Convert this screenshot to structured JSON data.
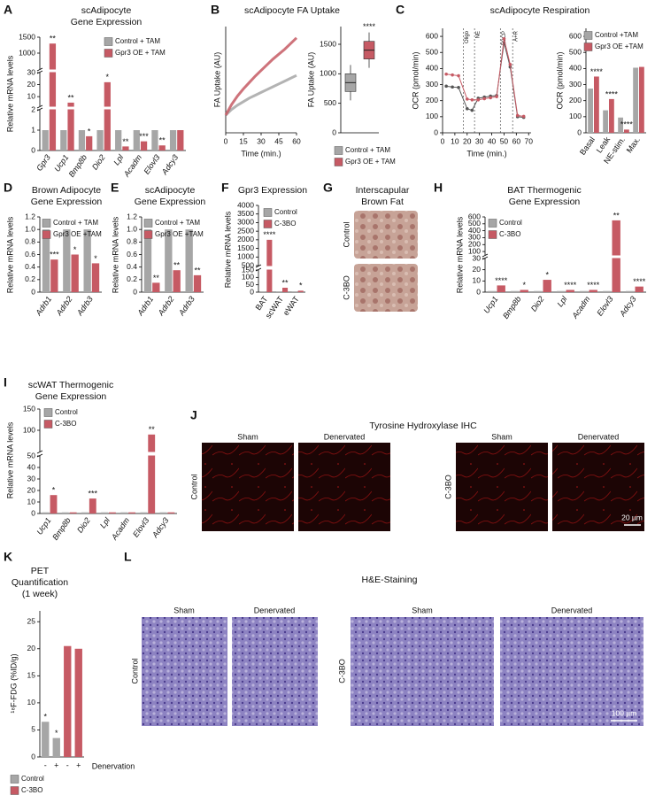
{
  "chart_data": [
    {
      "type": "bar",
      "panel": "A",
      "title": [
        "scAdipocyte",
        "Gene Expression"
      ],
      "ylabel": "Relative mRNA levels",
      "categories": [
        "Gpr3",
        "Ucp1",
        "Bmp8b",
        "Dio2",
        "Lpl",
        "Acadm",
        "Elovl3",
        "Adcy3"
      ],
      "segments": [
        {
          "ylim": [
            0,
            2
          ],
          "yticks": [
            0,
            1,
            2
          ]
        },
        {
          "ylim": [
            2,
            30
          ],
          "yticks": [
            10,
            20,
            30
          ]
        },
        {
          "ylim": [
            500,
            1500
          ],
          "yticks": [
            1000,
            1500
          ]
        }
      ],
      "series": [
        {
          "name": "Control + TAM",
          "color": "#a6a6a6",
          "values": [
            1,
            1,
            1,
            1,
            1,
            1,
            1,
            1
          ]
        },
        {
          "name": "Gpr3 OE + TAM",
          "color": "#c65a64",
          "values": [
            1300,
            5,
            0.7,
            22,
            0.2,
            0.45,
            0.25,
            1
          ],
          "labels": [
            "**",
            "**",
            "*",
            "*",
            "**",
            "***",
            "**",
            null
          ]
        }
      ]
    },
    {
      "type": "line",
      "panel": "B",
      "title": "scAdipocyte FA Uptake",
      "ylabel": "FA Uptake (AU)",
      "xlabel": "Time (min.)",
      "x": [
        0,
        5,
        10,
        15,
        20,
        25,
        30,
        35,
        40,
        45,
        50,
        55,
        60
      ],
      "xlim": [
        0,
        60
      ],
      "xticks": [
        0,
        15,
        30,
        45,
        60
      ],
      "ylim": [
        0,
        1500
      ],
      "series": [
        {
          "color": "#a6a6a6",
          "values": [
            250,
            330,
            390,
            440,
            490,
            530,
            570,
            610,
            650,
            690,
            730,
            770,
            810
          ]
        },
        {
          "color": "#c65a64",
          "values": [
            250,
            400,
            520,
            620,
            710,
            800,
            880,
            960,
            1040,
            1110,
            1180,
            1260,
            1340
          ]
        }
      ]
    },
    {
      "type": "box",
      "ylabel": "FA Uptake (AU)",
      "ylim": [
        0,
        1800
      ],
      "yticks": [
        0,
        500,
        1000,
        1500
      ],
      "annotation": "****",
      "series": [
        {
          "name": "Control + TAM",
          "color": "#a6a6a6",
          "min": 550,
          "q1": 700,
          "median": 850,
          "q3": 1000,
          "max": 1150
        },
        {
          "name": "Gpr3 OE + TAM",
          "color": "#c65a64",
          "min": 1100,
          "q1": 1250,
          "median": 1400,
          "q3": 1550,
          "max": 1700
        }
      ]
    },
    {
      "type": "line",
      "panel": "C",
      "title": "scAdipocyte Respiration",
      "ylabel": "OCR (pmol/min)",
      "xlabel": "Time (min.)",
      "markers": true,
      "x": [
        3,
        8,
        13,
        20,
        24,
        29,
        34,
        39,
        44,
        50,
        55,
        61,
        66
      ],
      "xlim": [
        0,
        72
      ],
      "xticks": [
        0,
        10,
        20,
        30,
        40,
        50,
        60,
        70
      ],
      "ylim": [
        0,
        650
      ],
      "yticks": [
        0,
        100,
        200,
        300,
        400,
        500,
        600
      ],
      "events": [
        {
          "x": 17,
          "label": "Oligo"
        },
        {
          "x": 26,
          "label": "NE"
        },
        {
          "x": 47,
          "label": "FCCP"
        },
        {
          "x": 57,
          "label": "A+R"
        }
      ],
      "series": [
        {
          "color": "#555555",
          "values": [
            290,
            285,
            282,
            150,
            140,
            215,
            222,
            228,
            232,
            560,
            410,
            100,
            96
          ]
        },
        {
          "color": "#c65a64",
          "values": [
            365,
            360,
            355,
            210,
            205,
            205,
            212,
            218,
            225,
            585,
            425,
            108,
            102
          ]
        }
      ]
    },
    {
      "type": "bar",
      "categories": [
        "Basal",
        "Leak",
        "NE-stim.",
        "Max."
      ],
      "ylabel": "OCR (pmol/min)",
      "ylim": [
        0,
        650
      ],
      "yticks": [
        0,
        100,
        200,
        300,
        400,
        500,
        600
      ],
      "series": [
        {
          "name": "Control +TAM",
          "color": "#a6a6a6",
          "values": [
            275,
            140,
            95,
            405
          ]
        },
        {
          "name": "Gpr3 OE +TAM",
          "color": "#c65a64",
          "values": [
            350,
            210,
            20,
            410
          ],
          "labels": [
            "****",
            "****",
            "****",
            null
          ]
        }
      ]
    },
    {
      "type": "bar",
      "panel": "D",
      "title": [
        "Brown Adipocyte",
        "Gene Expression"
      ],
      "ylabel": "Relative mRNA levels",
      "categories": [
        "Adrb1",
        "Adrb2",
        "Adrb3"
      ],
      "ylim": [
        0,
        1.2
      ],
      "yticks": [
        0,
        0.2,
        0.4,
        0.6,
        0.8,
        {
          "value": 1,
          "label": "1.0"
        },
        1.2
      ],
      "series": [
        {
          "name": "Control + TAM",
          "color": "#a6a6a6",
          "values": [
            1,
            1,
            1
          ]
        },
        {
          "name": "Gpr3 OE +TAM",
          "color": "#c65a64",
          "values": [
            0.52,
            0.6,
            0.46
          ],
          "labels": [
            "***",
            "*",
            "*"
          ]
        }
      ]
    },
    {
      "type": "bar",
      "panel": "E",
      "title": [
        "scAdipocyte",
        "Gene Expression"
      ],
      "ylabel": "Relative mRNA levels",
      "categories": [
        "Adrb1",
        "Adrb2",
        "Adrb3"
      ],
      "ylim": [
        0,
        1.2
      ],
      "yticks": [
        0,
        0.2,
        0.4,
        0.6,
        0.8,
        {
          "value": 1,
          "label": "1.0"
        },
        1.2
      ],
      "series": [
        {
          "name": "Control + TAM",
          "color": "#a6a6a6",
          "values": [
            1,
            1,
            1
          ]
        },
        {
          "name": "Gpr3 OE +TAM",
          "color": "#c65a64",
          "values": [
            0.15,
            0.35,
            0.27
          ],
          "labels": [
            "**",
            "**",
            "**"
          ]
        }
      ]
    },
    {
      "type": "bar",
      "panel": "F",
      "title": "Gpr3 Expression",
      "ylabel": "Relative mRNA levels",
      "categories": [
        "BAT",
        "scWAT",
        "eWAT"
      ],
      "segments": [
        {
          "ylim": [
            0,
            150
          ],
          "yticks": [
            0,
            50,
            100,
            150
          ]
        },
        {
          "ylim": [
            500,
            4000
          ],
          "yticks": [
            500,
            1000,
            1500,
            2000,
            2500,
            3000,
            3500,
            4000
          ]
        }
      ],
      "series": [
        {
          "name": "Control",
          "color": "#a6a6a6",
          "values": [
            1,
            1,
            1
          ]
        },
        {
          "name": "C-3BO",
          "color": "#c65a64",
          "values": [
            2000,
            30,
            10
          ],
          "labels": [
            "****",
            "**",
            "*"
          ]
        }
      ]
    },
    {
      "type": "bar",
      "panel": "H",
      "title": [
        "BAT Thermogenic",
        "Gene Expression"
      ],
      "ylabel": "Relative mRNA levels",
      "categories": [
        "Ucp1",
        "Bmp8b",
        "Dio2",
        "Lpl",
        "Acadm",
        "Elovl3",
        "Adcy3"
      ],
      "segments": [
        {
          "ylim": [
            0,
            30
          ],
          "yticks": [
            0,
            10,
            20,
            30
          ]
        },
        {
          "ylim": [
            50,
            600
          ],
          "yticks": [
            100,
            200,
            300,
            400,
            500,
            600
          ]
        }
      ],
      "series": [
        {
          "name": "Control",
          "color": "#a6a6a6",
          "values": [
            1,
            1,
            1,
            1,
            1,
            1,
            1
          ]
        },
        {
          "name": "C-3BO",
          "color": "#c65a64",
          "values": [
            6,
            2,
            11,
            2,
            2,
            550,
            5
          ],
          "labels": [
            "****",
            "*",
            "*",
            "****",
            "****",
            "**",
            "****"
          ]
        }
      ]
    },
    {
      "type": "bar",
      "panel": "I",
      "title": [
        "scWAT Thermogenic",
        "Gene Expression"
      ],
      "ylabel": "Relative mRNA levels",
      "categories": [
        "Ucp1",
        "Bmp8b",
        "Dio2",
        "Lpl",
        "Acadm",
        "Elovl3",
        "Adcy3"
      ],
      "segments": [
        {
          "ylim": [
            0,
            50
          ],
          "yticks": [
            0,
            10,
            20,
            30,
            40,
            50
          ]
        },
        {
          "ylim": [
            50,
            150
          ],
          "yticks": [
            100,
            150
          ]
        }
      ],
      "series": [
        {
          "name": "Control",
          "color": "#a6a6a6",
          "values": [
            1,
            1,
            1,
            1,
            1,
            1,
            1
          ]
        },
        {
          "name": "C-3BO",
          "color": "#c65a64",
          "values": [
            16,
            1,
            13,
            1,
            1,
            90,
            1
          ],
          "labels": [
            "*",
            null,
            "***",
            null,
            null,
            "**",
            null
          ]
        }
      ]
    },
    {
      "type": "bar",
      "panel": "K",
      "title": [
        "PET",
        "Quantification",
        "(1 week)"
      ],
      "ylabel": "¹⁸F-FDG (%ID/g)",
      "xlabel": "Denervation",
      "categories": [
        "-",
        "+"
      ],
      "ylim": [
        0,
        27
      ],
      "yticks": [
        0,
        5,
        10,
        15,
        20,
        25
      ],
      "series": [
        {
          "name": "Control",
          "color": "#a6a6a6",
          "values": [
            6.5,
            3.5
          ],
          "labels": [
            "*",
            "*"
          ]
        },
        {
          "name": "C-3BO",
          "color": "#c65a64",
          "values": [
            20.5,
            20
          ]
        }
      ]
    }
  ],
  "images": [
    {
      "panel": "G",
      "title": [
        "Interscapular",
        "Brown Fat"
      ],
      "rows": [
        "Control",
        "C-3BO"
      ]
    },
    {
      "panel": "J",
      "title": "Tyrosine Hydroxylase IHC",
      "columns": [
        "Sham",
        "Denervated"
      ],
      "groups": [
        "Control",
        "C-3BO"
      ],
      "scale_bar": "20 µm"
    },
    {
      "panel": "L",
      "title": "H&E-Staining",
      "columns": [
        "Sham",
        "Denervated"
      ],
      "groups": [
        "Control",
        "C-3BO"
      ],
      "scale_bar": "100 µm"
    }
  ]
}
